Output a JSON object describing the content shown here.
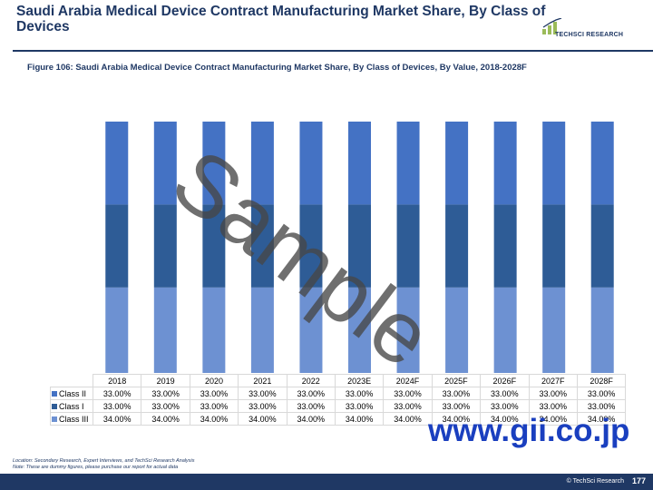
{
  "header": {
    "title": "Saudi Arabia Medical Device Contract Manufacturing Market Share, By Class of Devices",
    "logo_text": "TECHSCI RESEARCH"
  },
  "figure_caption": "Figure 106: Saudi Arabia Medical Device Contract Manufacturing Market Share, By Class of Devices, By Value, 2018-2028F",
  "chart_data": {
    "type": "bar",
    "stacked": true,
    "orientation": "vertical",
    "categories": [
      "2018",
      "2019",
      "2020",
      "2021",
      "2022",
      "2023E",
      "2024F",
      "2025F",
      "2026F",
      "2027F",
      "2028F"
    ],
    "series": [
      {
        "name": "Class II",
        "values": [
          33,
          33,
          33,
          33,
          33,
          33,
          33,
          33,
          33,
          33,
          33
        ],
        "labels": [
          "33.00%",
          "33.00%",
          "33.00%",
          "33.00%",
          "33.00%",
          "33.00%",
          "33.00%",
          "33.00%",
          "33.00%",
          "33.00%",
          "33.00%"
        ],
        "color": "#4472c4"
      },
      {
        "name": "Class I",
        "values": [
          33,
          33,
          33,
          33,
          33,
          33,
          33,
          33,
          33,
          33,
          33
        ],
        "labels": [
          "33.00%",
          "33.00%",
          "33.00%",
          "33.00%",
          "33.00%",
          "33.00%",
          "33.00%",
          "33.00%",
          "33.00%",
          "33.00%",
          "33.00%"
        ],
        "color": "#2e5c96"
      },
      {
        "name": "Class III",
        "values": [
          34,
          34,
          34,
          34,
          34,
          34,
          34,
          34,
          34,
          34,
          34
        ],
        "labels": [
          "34.00%",
          "34.00%",
          "34.00%",
          "34.00%",
          "34.00%",
          "34.00%",
          "34.00%",
          "34.00%",
          "34.00%",
          "34.00%",
          "34.00%"
        ],
        "color": "#6d91d2"
      }
    ],
    "stack_order_bottom_to_top": [
      "Class III",
      "Class I",
      "Class II"
    ],
    "ylim": [
      0,
      100
    ],
    "grid": false,
    "legend": "data-table"
  },
  "footer": {
    "source_note": "Location: Secondary Research, Expert Interviews, and TechSci Research Analysis",
    "dummy_note": "Note: These are dummy figures, please purchase our report for actual data",
    "credit": "© TechSci Research",
    "page_number": "177"
  },
  "watermarks": {
    "sample": "Sample",
    "url": "www.gii.co.jp"
  }
}
